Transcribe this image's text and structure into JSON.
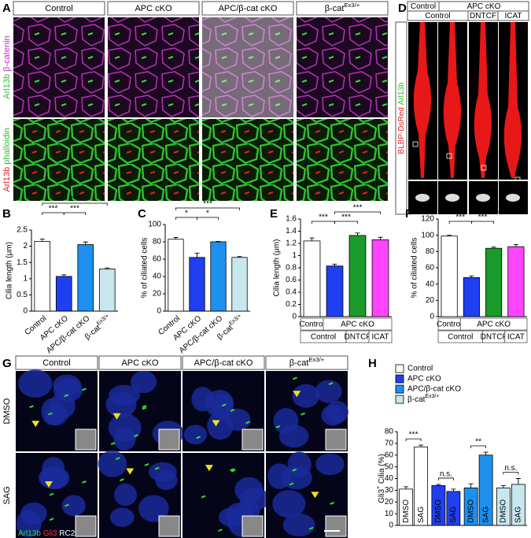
{
  "figure_a": {
    "panel": "A",
    "columns": [
      "Control",
      "APC cKO",
      "APC/β-cat cKO",
      {
        "base": "β-cat",
        "sup": "Ex3/+"
      }
    ],
    "rows": [
      [
        "Arl13b",
        "β-catenin"
      ],
      [
        "Arl13b",
        "phalloidin"
      ]
    ]
  },
  "figure_d": {
    "panel": "D",
    "header": [
      "Control",
      "APC cKO"
    ],
    "subheader": [
      "Control",
      "DNTCF",
      "ICAT"
    ],
    "side_label": [
      "BLBP-DsRed",
      "Arl13b"
    ]
  },
  "figure_g": {
    "panel": "G",
    "columns": [
      "Control",
      "APC cKO",
      "APC/β-cat cKO",
      {
        "base": "β-cat",
        "sup": "Ex3/+"
      }
    ],
    "rows": [
      "DMSO",
      "SAG"
    ],
    "stain_legend": [
      "Arl13b",
      "Gli3",
      "RC2"
    ]
  },
  "chart_data": [
    {
      "type": "bar",
      "panel": "B",
      "y_label": "Cilia length (μm)",
      "categories": [
        "Control",
        "APC cKO",
        "APC/β-cat cKO",
        {
          "base": "β-cat",
          "sup": "Ex3/+"
        }
      ],
      "values": [
        2.15,
        1.07,
        2.05,
        1.3
      ],
      "errors": [
        0.07,
        0.05,
        0.08,
        0.03
      ],
      "colors": [
        "#ffffff",
        "#1f3ff0",
        "#1e90f0",
        "#c8e6ee"
      ],
      "ylim": [
        0,
        2.5
      ],
      "yticks": [
        0,
        0.5,
        1,
        1.5,
        2,
        2.5
      ],
      "annotations": [
        "***",
        "***",
        "***"
      ]
    },
    {
      "type": "bar",
      "panel": "C",
      "y_label": "% of ciliated cells",
      "categories": [
        "Control",
        "APC cKO",
        "APC/β-cat cKO",
        {
          "base": "β-cat",
          "sup": "Ex3/+"
        }
      ],
      "values": [
        83,
        62,
        80,
        62
      ],
      "errors": [
        2,
        5,
        0.5,
        1
      ],
      "colors": [
        "#ffffff",
        "#1f3ff0",
        "#1e90f0",
        "#c8e6ee"
      ],
      "ylim": [
        0,
        100
      ],
      "yticks": [
        0,
        20,
        40,
        60,
        80,
        100
      ],
      "annotations": [
        "*",
        "*",
        "***"
      ]
    },
    {
      "type": "bar",
      "panel": "E",
      "y_label": "Cilia length (μm)",
      "values": [
        1.24,
        0.83,
        1.33,
        1.26
      ],
      "errors": [
        0.05,
        0.03,
        0.04,
        0.04
      ],
      "colors": [
        "#ffffff",
        "#1f3ff0",
        "#1a9a2a",
        "#ff44ff"
      ],
      "ylim": [
        0,
        1.6
      ],
      "yticks": [
        0,
        0.2,
        0.4,
        0.6,
        0.8,
        1,
        1.2,
        1.4,
        1.6
      ],
      "annotations": [
        "***",
        "***",
        "***"
      ],
      "group_table": [
        [
          "Control",
          "APC cKO"
        ],
        [
          "Control",
          "DNTCF",
          "ICAT"
        ]
      ]
    },
    {
      "type": "bar",
      "panel": "F",
      "y_label": "% of ciliated cells",
      "values": [
        99,
        48,
        84,
        86
      ],
      "errors": [
        1,
        2,
        1.5,
        2.5
      ],
      "colors": [
        "#ffffff",
        "#1f3ff0",
        "#1a9a2a",
        "#ff44ff"
      ],
      "ylim": [
        0,
        120
      ],
      "yticks": [
        0,
        20,
        40,
        60,
        80,
        100,
        120
      ],
      "annotations": [
        "***",
        "***",
        "***"
      ],
      "group_table": [
        [
          "Control",
          "APC cKO"
        ],
        [
          "Control",
          "DNTCF",
          "ICAT"
        ]
      ]
    },
    {
      "type": "grouped_bar",
      "panel": "H",
      "y_label": {
        "base": "Gli3",
        "sup": "+",
        "rest": " Cilia (%)"
      },
      "categories": [
        "DMSO",
        "SAG"
      ],
      "series": [
        {
          "name": "Control",
          "color": "#ffffff",
          "values": [
            31,
            67
          ],
          "errors": [
            2,
            1.5
          ]
        },
        {
          "name": "APC cKO",
          "color": "#1f3ff0",
          "values": [
            34,
            29
          ],
          "errors": [
            1,
            2
          ]
        },
        {
          "name": "APC/β-cat cKO",
          "color": "#1e90f0",
          "values": [
            32,
            60
          ],
          "errors": [
            3.5,
            2.5
          ]
        },
        {
          "name": {
            "base": "β-cat",
            "sup": "Ex3/+"
          },
          "color": "#c8e6ee",
          "values": [
            32,
            35
          ],
          "errors": [
            2,
            5
          ]
        }
      ],
      "ylim": [
        0,
        80
      ],
      "yticks": [
        0,
        10,
        20,
        30,
        40,
        50,
        60,
        70,
        80
      ],
      "annotations": [
        "***",
        "n.s.",
        "**",
        "n.s."
      ]
    }
  ]
}
